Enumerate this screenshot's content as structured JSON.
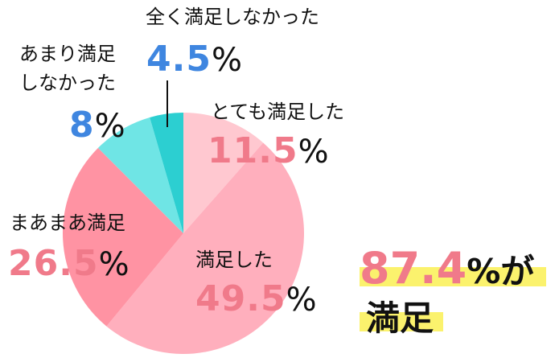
{
  "chart_data": {
    "type": "pie",
    "categories": [
      "とても満足した",
      "満足した",
      "まあまあ満足",
      "あまり満足しなかった",
      "全く満足しなかった"
    ],
    "values": [
      11.5,
      49.5,
      26.5,
      8,
      4.5
    ],
    "colors": [
      "#ffc8d0",
      "#ffafbd",
      "#ff93a3",
      "#6fe5e5",
      "#2ccfd1"
    ],
    "percent_labels": [
      "11.5",
      "49.5",
      "26.5",
      "8",
      "4.5"
    ],
    "percent_sign": "%",
    "start_angle_deg": 0,
    "direction": "clockwise"
  },
  "labels": {
    "very_satisfied": "とても満足した",
    "satisfied": "満足した",
    "somewhat_satisfied": "まあまあ満足",
    "not_very_line1": "あまり満足",
    "not_very_line2": "しなかった",
    "not_at_all": "全く満足しなかった"
  },
  "summary": {
    "value": "87.4",
    "suffix": "%が",
    "line2": "満足"
  }
}
